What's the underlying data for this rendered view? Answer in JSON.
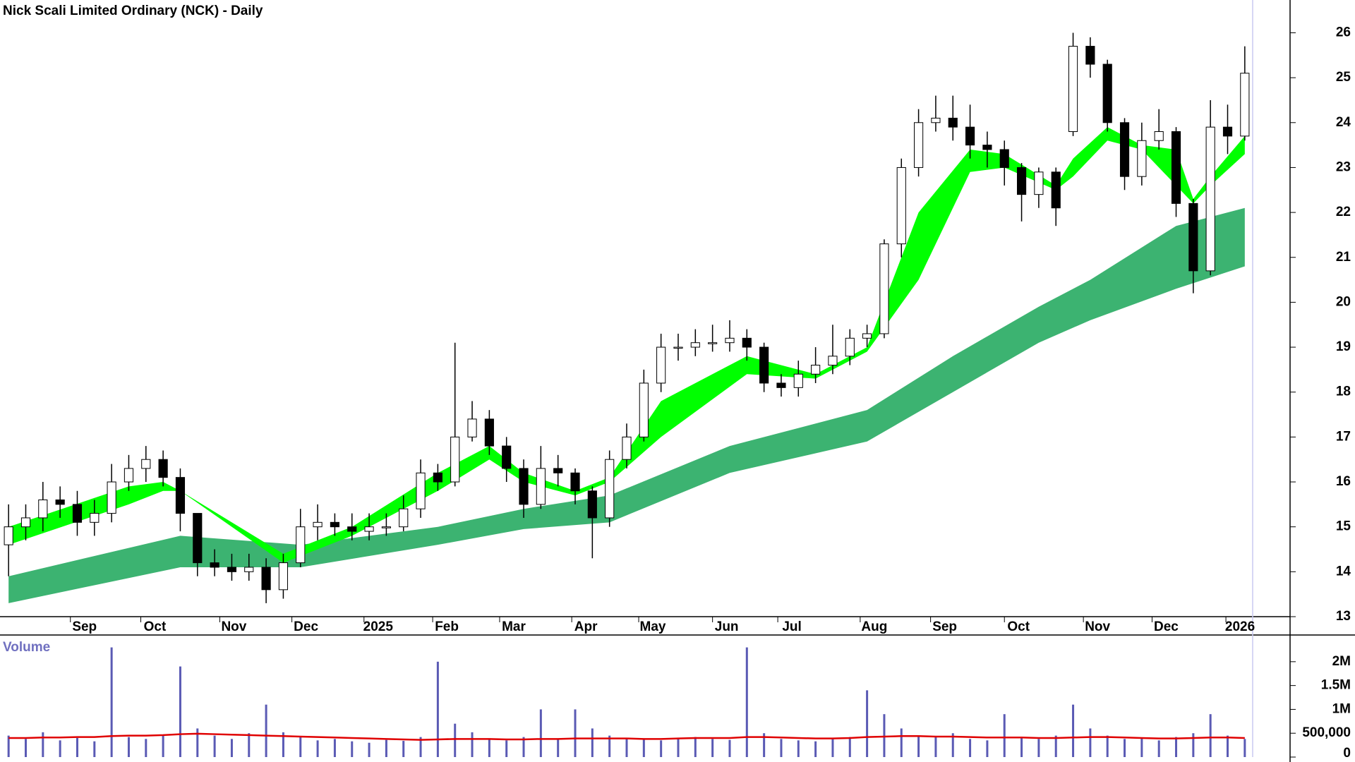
{
  "chart_data": [
    {
      "type": "candlestick",
      "title": "Nick Scali Limited Ordinary (NCK) - Daily",
      "open": [
        14.6,
        15.0,
        15.2,
        15.6,
        15.5,
        15.1,
        15.3,
        16.0,
        16.3,
        16.5,
        16.1,
        15.3,
        14.2,
        14.1,
        14.0,
        14.1,
        13.6,
        14.2,
        15.0,
        15.1,
        15.0,
        14.9,
        15.0,
        15.0,
        15.4,
        16.2,
        16.0,
        17.0,
        17.4,
        16.8,
        16.3,
        15.5,
        16.3,
        16.2,
        15.8,
        15.2,
        16.5,
        17.0,
        18.2,
        19.0,
        19.0,
        19.1,
        19.1,
        19.2,
        19.0,
        18.2,
        18.1,
        18.4,
        18.6,
        18.8,
        19.2,
        19.3,
        21.3,
        23.0,
        24.0,
        24.1,
        23.9,
        23.5,
        23.4,
        23.0,
        22.4,
        22.9,
        23.8,
        25.7,
        25.3,
        24.0,
        22.8,
        23.6,
        23.8,
        22.2,
        20.7,
        23.9,
        23.7
      ],
      "high": [
        15.5,
        15.5,
        16.0,
        15.9,
        15.8,
        15.6,
        16.4,
        16.6,
        16.8,
        16.7,
        16.3,
        15.3,
        14.5,
        14.4,
        14.4,
        14.3,
        14.4,
        15.4,
        15.5,
        15.3,
        15.3,
        15.3,
        15.3,
        15.7,
        16.5,
        16.4,
        19.1,
        17.8,
        17.6,
        17.0,
        16.5,
        16.8,
        16.6,
        16.3,
        15.9,
        16.7,
        17.3,
        18.5,
        19.3,
        19.3,
        19.4,
        19.5,
        19.6,
        19.4,
        19.1,
        18.4,
        18.7,
        19.0,
        19.5,
        19.4,
        19.5,
        21.4,
        23.2,
        24.3,
        24.6,
        24.6,
        24.4,
        23.8,
        23.6,
        23.1,
        23.0,
        23.0,
        26.0,
        25.9,
        25.4,
        24.1,
        24.0,
        24.3,
        23.9,
        22.3,
        24.5,
        24.4,
        25.7
      ],
      "low": [
        13.9,
        14.7,
        14.9,
        15.2,
        14.8,
        14.8,
        15.1,
        15.8,
        16.0,
        15.9,
        14.9,
        13.9,
        13.9,
        13.8,
        13.8,
        13.3,
        13.4,
        14.1,
        14.7,
        14.8,
        14.7,
        14.7,
        14.8,
        14.9,
        15.2,
        15.8,
        15.9,
        16.9,
        16.6,
        16.0,
        15.2,
        15.4,
        15.9,
        15.5,
        14.3,
        15.0,
        16.3,
        16.9,
        18.0,
        18.7,
        18.8,
        18.9,
        18.9,
        18.7,
        18.0,
        17.9,
        17.9,
        18.2,
        18.4,
        18.6,
        19.0,
        19.2,
        21.0,
        22.8,
        23.8,
        23.6,
        23.2,
        23.0,
        22.6,
        21.8,
        22.1,
        21.7,
        23.7,
        25.0,
        23.8,
        22.5,
        22.6,
        23.4,
        21.9,
        20.2,
        20.6,
        23.3,
        23.6
      ],
      "close": [
        15.0,
        15.2,
        15.6,
        15.5,
        15.1,
        15.3,
        16.0,
        16.3,
        16.5,
        16.1,
        15.3,
        14.2,
        14.1,
        14.0,
        14.1,
        13.6,
        14.2,
        15.0,
        15.1,
        15.0,
        14.9,
        15.0,
        15.0,
        15.4,
        16.2,
        16.0,
        17.0,
        17.4,
        16.8,
        16.3,
        15.5,
        16.3,
        16.2,
        15.8,
        15.2,
        16.5,
        17.0,
        18.2,
        19.0,
        19.0,
        19.1,
        19.1,
        19.2,
        19.0,
        18.2,
        18.1,
        18.4,
        18.6,
        18.8,
        19.2,
        19.3,
        21.3,
        23.0,
        24.0,
        24.1,
        23.9,
        23.5,
        23.4,
        23.0,
        22.4,
        22.9,
        22.1,
        25.7,
        25.3,
        24.0,
        22.8,
        23.6,
        23.8,
        22.2,
        20.7,
        23.9,
        23.7,
        25.1
      ],
      "bands": [
        {
          "color": "#3cb371",
          "x": [
            0,
            10,
            17,
            25,
            30,
            35,
            42,
            50,
            55,
            60,
            63,
            68,
            72
          ],
          "upper": [
            13.9,
            14.8,
            14.6,
            15.0,
            15.4,
            15.7,
            16.8,
            17.6,
            18.8,
            19.9,
            20.5,
            21.7,
            22.1
          ],
          "lower": [
            13.3,
            14.1,
            14.1,
            14.6,
            14.95,
            15.1,
            16.2,
            16.9,
            18.0,
            19.1,
            19.6,
            20.3,
            20.8
          ]
        },
        {
          "color": "#00ff00",
          "x": [
            0,
            7,
            9,
            10,
            16,
            20,
            25,
            28,
            30,
            33,
            35,
            38,
            43,
            47,
            50,
            53,
            56,
            58,
            61,
            62,
            64,
            66,
            68,
            69,
            70,
            72
          ],
          "upper": [
            15.0,
            15.9,
            16.0,
            15.8,
            14.4,
            15.0,
            16.2,
            16.8,
            16.2,
            15.8,
            16.1,
            17.8,
            18.8,
            18.4,
            19.0,
            22.0,
            23.4,
            23.3,
            22.6,
            23.2,
            23.9,
            23.5,
            23.4,
            22.3,
            22.8,
            23.7
          ],
          "lower": [
            14.6,
            15.5,
            15.8,
            15.8,
            14.2,
            14.8,
            15.8,
            16.5,
            16.0,
            15.7,
            16.0,
            17.0,
            18.4,
            18.3,
            18.9,
            20.5,
            22.9,
            23.0,
            22.5,
            22.8,
            23.6,
            23.4,
            22.6,
            22.2,
            22.6,
            23.3
          ]
        }
      ],
      "xlim": [
        -0.5,
        72.5
      ],
      "xticks": [
        {
          "value": 3.6,
          "label": "Sep"
        },
        {
          "value": 7.7,
          "label": "Oct"
        },
        {
          "value": 12.3,
          "label": "Nov"
        },
        {
          "value": 16.5,
          "label": "Dec"
        },
        {
          "value": 20.7,
          "label": "2025"
        },
        {
          "value": 24.7,
          "label": "Feb"
        },
        {
          "value": 28.6,
          "label": "Mar"
        },
        {
          "value": 32.8,
          "label": "Apr"
        },
        {
          "value": 36.7,
          "label": "May"
        },
        {
          "value": 41,
          "label": "Jun"
        },
        {
          "value": 44.8,
          "label": "Jul"
        },
        {
          "value": 49.6,
          "label": "Aug"
        },
        {
          "value": 53.7,
          "label": "Sep"
        },
        {
          "value": 58,
          "label": "Oct"
        },
        {
          "value": 62.6,
          "label": "Nov"
        },
        {
          "value": 66.6,
          "label": "Dec"
        },
        {
          "value": 70.9,
          "label": "2026"
        }
      ],
      "ylim": [
        13,
        26.73
      ],
      "yticks": [
        13,
        14,
        15,
        16,
        17,
        18,
        19,
        20,
        21,
        22,
        23,
        24,
        25,
        26
      ]
    },
    {
      "type": "bar",
      "title": "Volume",
      "color": "#5a5ab4",
      "values": [
        450000,
        380000,
        520000,
        350000,
        400000,
        330000,
        2300000,
        420000,
        380000,
        460000,
        1900000,
        600000,
        450000,
        380000,
        500000,
        1100000,
        520000,
        420000,
        350000,
        380000,
        330000,
        300000,
        360000,
        340000,
        420000,
        2000000,
        700000,
        520000,
        380000,
        350000,
        420000,
        1000000,
        380000,
        1000000,
        600000,
        450000,
        400000,
        380000,
        350000,
        380000,
        420000,
        380000,
        360000,
        2300000,
        500000,
        380000,
        350000,
        330000,
        380000,
        420000,
        1400000,
        900000,
        600000,
        450000,
        420000,
        500000,
        380000,
        350000,
        900000,
        420000,
        380000,
        450000,
        1100000,
        600000,
        450000,
        380000,
        400000,
        350000,
        420000,
        500000,
        900000,
        450000,
        380000
      ],
      "average": {
        "color": "#e00000",
        "values": [
          400000,
          400000,
          410000,
          410000,
          420000,
          420000,
          440000,
          450000,
          450000,
          460000,
          480000,
          490000,
          480000,
          470000,
          460000,
          450000,
          440000,
          430000,
          420000,
          410000,
          400000,
          390000,
          380000,
          370000,
          360000,
          370000,
          380000,
          380000,
          380000,
          370000,
          370000,
          380000,
          380000,
          390000,
          390000,
          390000,
          390000,
          380000,
          380000,
          390000,
          400000,
          400000,
          400000,
          420000,
          420000,
          410000,
          400000,
          390000,
          390000,
          400000,
          420000,
          430000,
          440000,
          440000,
          430000,
          430000,
          420000,
          410000,
          410000,
          410000,
          400000,
          400000,
          410000,
          420000,
          420000,
          410000,
          400000,
          390000,
          390000,
          400000,
          410000,
          410000,
          400000
        ]
      },
      "ylim": [
        0,
        2560000
      ],
      "yticks": [
        0,
        {
          "value": 500000,
          "label": "500,000"
        },
        {
          "value": 1000000,
          "label": "1M"
        },
        {
          "value": 1500000,
          "label": "1.5M"
        },
        {
          "value": 2000000,
          "label": "2M"
        }
      ]
    }
  ]
}
